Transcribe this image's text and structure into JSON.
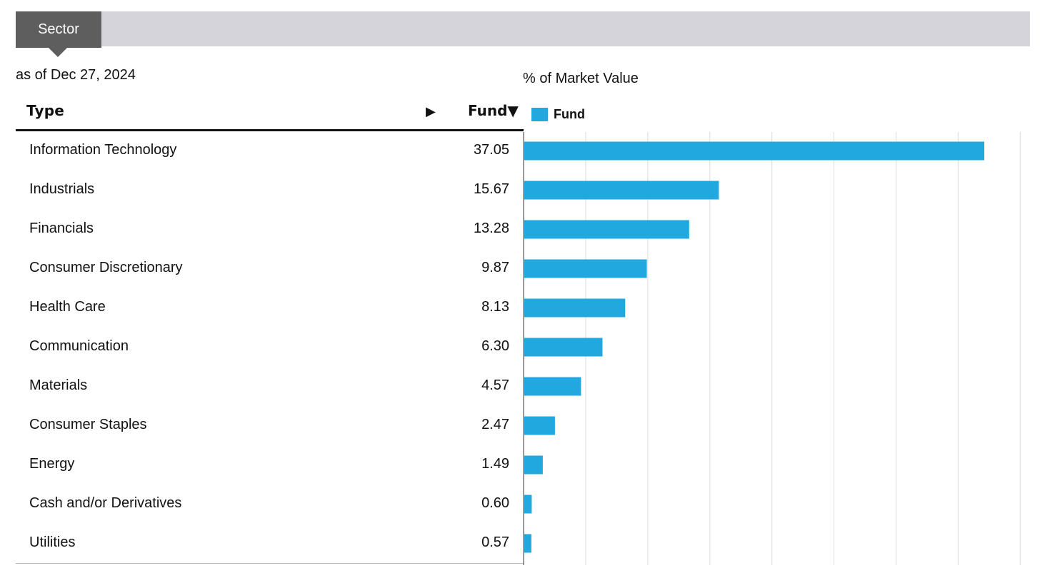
{
  "tabs": {
    "active_label": "Sector"
  },
  "as_of": "as of Dec 27, 2024",
  "table": {
    "type_header": "Type",
    "sort_indicator": "▶",
    "fund_header": "Fund▼"
  },
  "chart_data": {
    "type": "bar",
    "orientation": "horizontal",
    "title": "% of Market Value",
    "categories": [
      "Information Technology",
      "Industrials",
      "Financials",
      "Consumer Discretionary",
      "Health Care",
      "Communication",
      "Materials",
      "Consumer Staples",
      "Energy",
      "Cash and/or Derivatives",
      "Utilities"
    ],
    "series": [
      {
        "name": "Fund",
        "values": [
          37.05,
          15.67,
          13.28,
          9.87,
          8.13,
          6.3,
          4.57,
          2.47,
          1.49,
          0.6,
          0.57
        ]
      }
    ],
    "value_labels": [
      "37.05",
      "15.67",
      "13.28",
      "9.87",
      "8.13",
      "6.30",
      "4.57",
      "2.47",
      "1.49",
      "0.60",
      "0.57"
    ],
    "xlim": [
      0,
      40
    ],
    "gridline_step": 5,
    "grid": true,
    "legend": "top-left",
    "colors": {
      "bar": "#21a8df",
      "grid": "#dcdcdc",
      "axis": "#333333"
    }
  }
}
